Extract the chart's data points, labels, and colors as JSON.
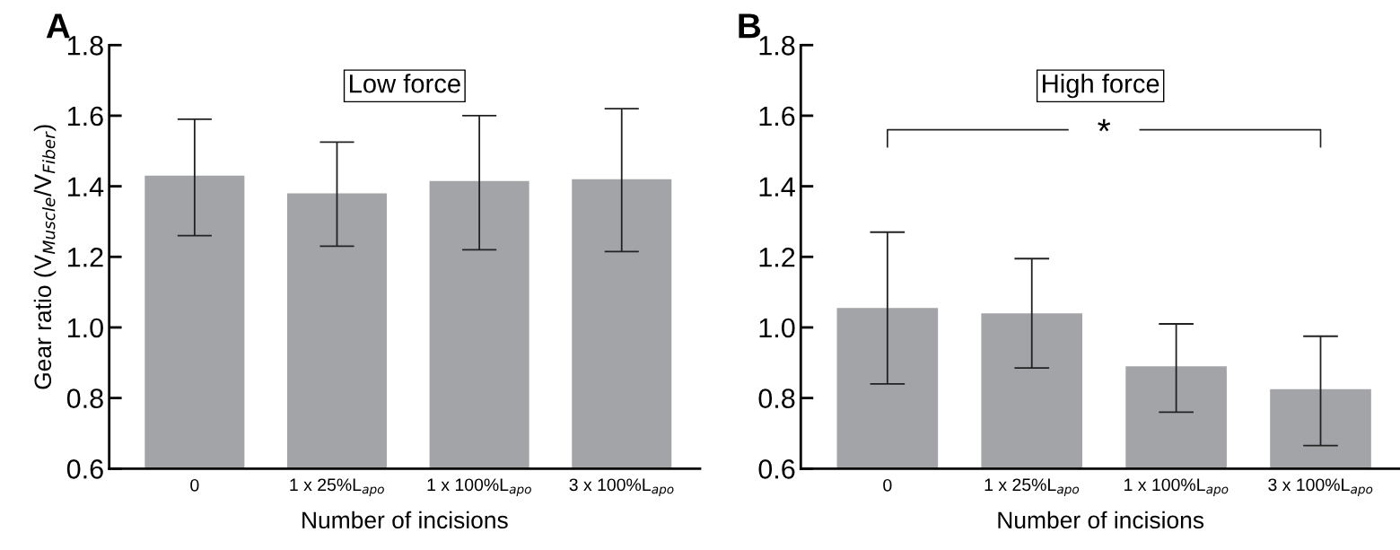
{
  "chart_data": [
    {
      "type": "bar",
      "title": "Low force",
      "xlabel": "Number of incisions",
      "ylabel": "Gear ratio (V$_{Muscle}$/V$_{Fiber}$)",
      "categories": [
        "0",
        "1 x 25%L$_{apo}$",
        "1 x 100%L$_{apo}$",
        "3 x 100%L$_{apo}$"
      ],
      "values": [
        1.43,
        1.38,
        1.415,
        1.42
      ],
      "color": "#a3a4a8",
      "errors": [
        [
          1.26,
          1.59
        ],
        [
          1.23,
          1.525
        ],
        [
          1.22,
          1.6
        ],
        [
          1.215,
          1.62
        ]
      ],
      "ylim": [
        0.6,
        1.8
      ],
      "yticks": [
        0.6,
        0.8,
        {
          "value": 1,
          "label": "1.0"
        },
        1.2,
        1.4,
        1.6,
        1.8
      ],
      "grid": false,
      "legend": false,
      "annotations": [
        "A"
      ]
    },
    {
      "type": "bar",
      "title": "High force",
      "xlabel": "Number of incisions",
      "categories": [
        "0",
        "1 x 25%L$_{apo}$",
        "1 x 100%L$_{apo}$",
        "3 x 100%L$_{apo}$"
      ],
      "values": [
        1.055,
        1.04,
        0.89,
        0.825
      ],
      "color": "#a3a4a8",
      "errors": [
        [
          0.84,
          1.27
        ],
        [
          0.885,
          1.195
        ],
        [
          0.76,
          1.01
        ],
        [
          0.665,
          0.975
        ]
      ],
      "ylim": [
        0.6,
        1.8
      ],
      "yticks": [
        0.6,
        0.8,
        {
          "value": 1,
          "label": "1.0"
        },
        1.2,
        1.4,
        1.6,
        1.8
      ],
      "grid": false,
      "legend": false,
      "annotations": [
        "B",
        "*"
      ]
    }
  ]
}
